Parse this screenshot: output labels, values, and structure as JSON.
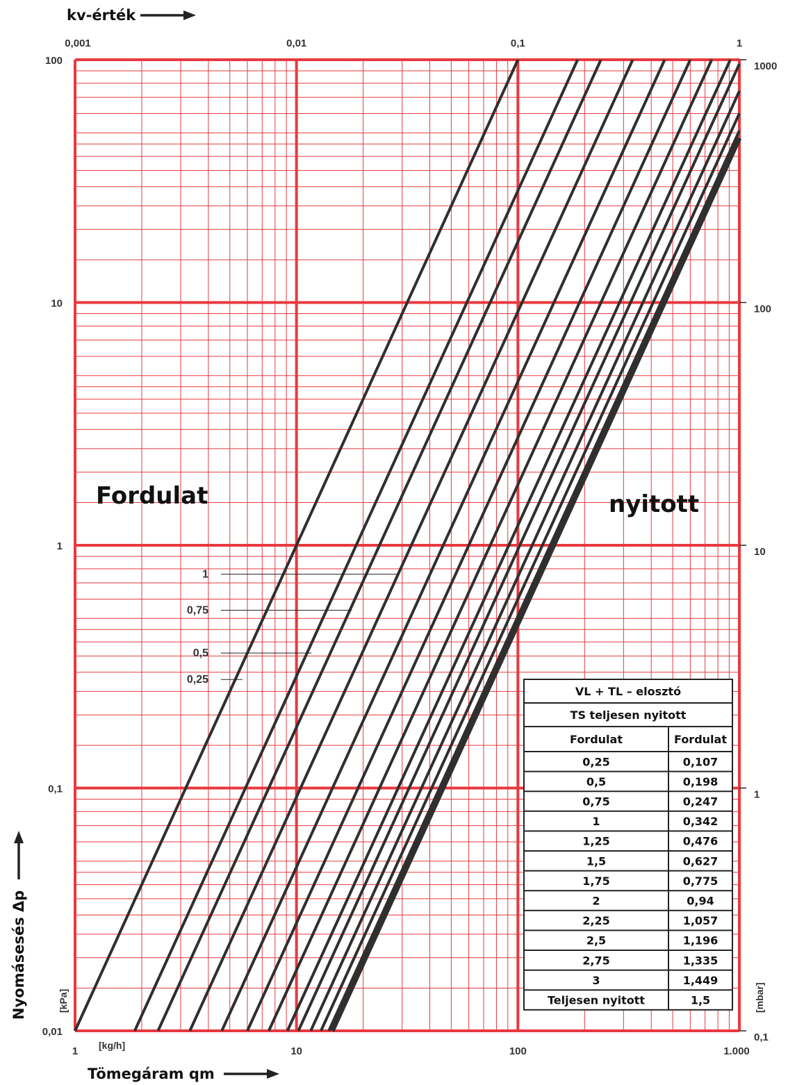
{
  "chart_data": {
    "type": "line",
    "x_axis": {
      "label": "Tömegáram qm",
      "unit": "[kg/h]",
      "scale": "log",
      "range": [
        1,
        1000
      ],
      "tick_labels": [
        "1",
        "10",
        "100",
        "1.000"
      ]
    },
    "x2_axis": {
      "label": "kv-érték",
      "scale": "log",
      "range": [
        0.001,
        1
      ],
      "tick_labels": [
        "0,001",
        "0,01",
        "0,1",
        "1"
      ]
    },
    "y_axis": {
      "label": "Nyomásesés Δp",
      "unit": "[kPa]",
      "scale": "log",
      "range": [
        0.01,
        100
      ],
      "tick_labels": [
        "0,01",
        "0,1",
        "1",
        "10",
        "100"
      ]
    },
    "y2_axis": {
      "unit": "[mbar]",
      "scale": "log",
      "range": [
        0.1,
        1000
      ],
      "tick_labels": [
        "0,1",
        "1",
        "10",
        "100",
        "1000"
      ]
    },
    "grid": true,
    "annotations": {
      "left": "Fordulat",
      "right": "nyitott",
      "turn_labels": [
        "1",
        "0,75",
        "0,5",
        "0,25"
      ]
    },
    "series": [
      {
        "kv": 0.01,
        "x": [
          1.0,
          100.0
        ],
        "y": [
          0.01,
          100
        ]
      },
      {
        "kv": 0.0186,
        "x": [
          1.86,
          186.0
        ],
        "y": [
          0.01,
          100
        ]
      },
      {
        "kv": 0.0237,
        "x": [
          2.37,
          237.0
        ],
        "y": [
          0.01,
          100
        ]
      },
      {
        "kv": 0.033,
        "x": [
          3.3,
          330.0
        ],
        "y": [
          0.01,
          100
        ]
      },
      {
        "kv": 0.046,
        "x": [
          4.6,
          460.0
        ],
        "y": [
          0.01,
          100
        ]
      },
      {
        "kv": 0.06,
        "x": [
          6.0,
          600.0
        ],
        "y": [
          0.01,
          100
        ]
      },
      {
        "kv": 0.075,
        "x": [
          7.5,
          750.0
        ],
        "y": [
          0.01,
          100
        ]
      },
      {
        "kv": 0.091,
        "x": [
          9.1,
          910.0
        ],
        "y": [
          0.01,
          100
        ]
      },
      {
        "kv": 0.102,
        "x": [
          10.2,
          1000.0
        ],
        "y": [
          0.01,
          96.1
        ]
      },
      {
        "kv": 0.116,
        "x": [
          11.6,
          1000.0
        ],
        "y": [
          0.01,
          74.3
        ]
      },
      {
        "kv": 0.129,
        "x": [
          12.9,
          1000.0
        ],
        "y": [
          0.01,
          60.1
        ]
      },
      {
        "kv": 0.14,
        "x": [
          14.0,
          1000.0
        ],
        "y": [
          0.01,
          51.0
        ]
      },
      {
        "kv": 0.145,
        "x": [
          14.5,
          1000.0
        ],
        "y": [
          0.01,
          47.6
        ],
        "emphasis": true
      }
    ]
  },
  "table": {
    "title": "VL + TL – elosztó",
    "subtitle": "TS teljesen nyitott",
    "headers": [
      "Fordulat",
      "Fordulat"
    ],
    "rows": [
      [
        "0,25",
        "0,107"
      ],
      [
        "0,5",
        "0,198"
      ],
      [
        "0,75",
        "0,247"
      ],
      [
        "1",
        "0,342"
      ],
      [
        "1,25",
        "0,476"
      ],
      [
        "1,5",
        "0,627"
      ],
      [
        "1,75",
        "0,775"
      ],
      [
        "2",
        "0,94"
      ],
      [
        "2,25",
        "1,057"
      ],
      [
        "2,5",
        "1,196"
      ],
      [
        "2,75",
        "1,335"
      ],
      [
        "3",
        "1,449"
      ],
      [
        "Teljesen nyitott",
        "1,5"
      ]
    ]
  },
  "colors": {
    "grid": "#e8393f",
    "lines": "#2f2f2f",
    "text": "#111111"
  }
}
